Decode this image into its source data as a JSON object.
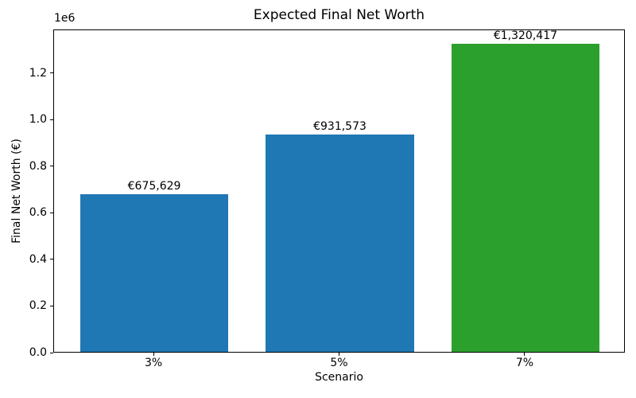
{
  "figure": {
    "background_color": "#ffffff",
    "text_color": "#000000"
  },
  "chart_data": {
    "type": "bar",
    "title": "Expected Final Net Worth",
    "xlabel": "Scenario",
    "ylabel": "Final Net Worth (€)",
    "y_offset_label": "1e6",
    "categories": [
      "3%",
      "5%",
      "7%"
    ],
    "values": [
      675629,
      931573,
      1320417
    ],
    "bar_labels": [
      "€675,629",
      "€931,573",
      "€1,320,417"
    ],
    "bar_colors": [
      "#1f77b4",
      "#1f77b4",
      "#2ca02c"
    ],
    "bar_width_units": 0.8,
    "xlim": [
      -0.54,
      2.54
    ],
    "ylim": [
      0,
      1386438
    ],
    "ytick_values": [
      0,
      200000,
      400000,
      600000,
      800000,
      1000000,
      1200000
    ],
    "ytick_labels": [
      "0.0",
      "0.2",
      "0.4",
      "0.6",
      "0.8",
      "1.0",
      "1.2"
    ],
    "grid": false,
    "legend": null
  }
}
